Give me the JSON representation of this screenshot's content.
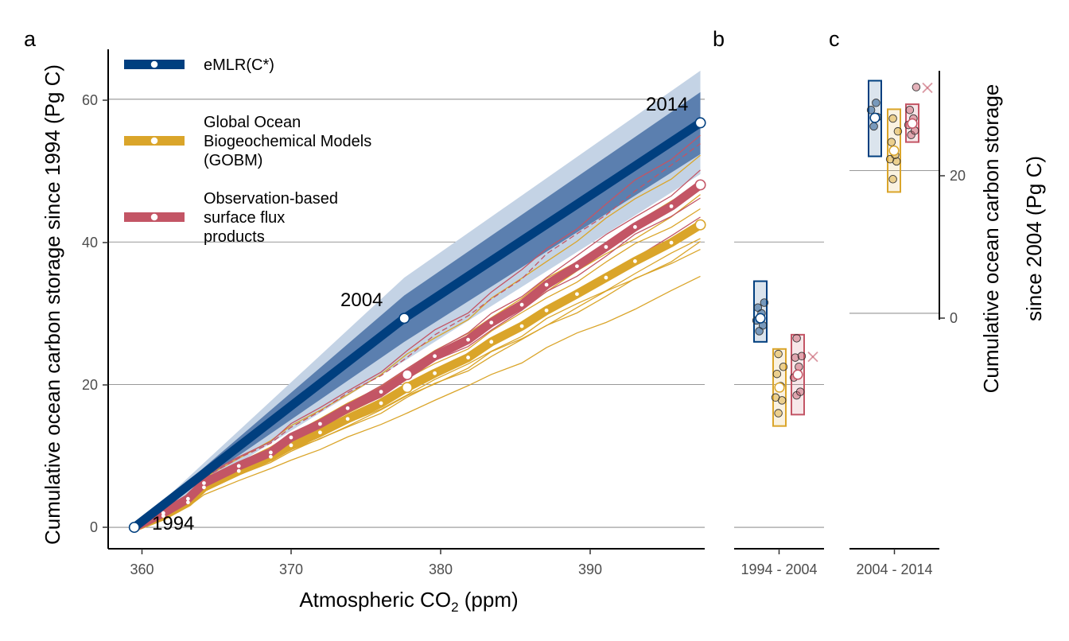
{
  "panel_labels": {
    "a": "a",
    "b": "b",
    "c": "c"
  },
  "colors": {
    "emlr": "#003f7f",
    "emlr_inner_band": "#5b7faf",
    "emlr_outer_band": "#c4d3e5",
    "gobm": "#daa52a",
    "obs": "#c35565",
    "grid": "#777777"
  },
  "legend": {
    "emlr": [
      "eMLR(C*)"
    ],
    "gobm": [
      "Global Ocean",
      "Biogeochemical Models",
      "(GOBM)"
    ],
    "obs": [
      "Observation-based",
      "surface flux",
      "products"
    ]
  },
  "panel_a": {
    "xlabel": "Atmospheric CO",
    "xlabel_sub": "2",
    "xlabel_unit": " (ppm)",
    "ylabel": "Cumulative ocean carbon storage since 1994 (Pg C)",
    "ticks": {
      "x": [
        "360",
        "370",
        "380",
        "390"
      ],
      "y": [
        "0",
        "20",
        "40",
        "60"
      ]
    },
    "annotations": {
      "y1994": "1994",
      "y2004": "2004",
      "y2014": "2014"
    }
  },
  "panel_b": {
    "xtick": "1994 - 2004"
  },
  "panel_c": {
    "xtick": "2004 - 2014",
    "ylabel_line1": "Cumulative ocean carbon storage",
    "ylabel_line2": "since 2004 (Pg C)",
    "ticks": {
      "y": [
        "0",
        "20"
      ]
    }
  },
  "chart_data": [
    {
      "type": "line",
      "xlabel": "Atmospheric CO2 (ppm)",
      "ylabel": "Cumulative ocean carbon storage since 1994 (Pg C)",
      "xlim": [
        356.5,
        397.6
      ],
      "ylim": [
        -3,
        67
      ],
      "grid": "horizontal",
      "legend_position": "top-left",
      "series": [
        {
          "name": "eMLR(C*)",
          "x": [
            358.3,
            376.9,
            397.3
          ],
          "y": [
            0,
            29.3,
            56.7
          ],
          "band_inner_upper": [
            0,
            32.5,
            61
          ],
          "band_inner_lower": [
            0,
            26,
            52.3
          ],
          "band_outer_upper": [
            0,
            35,
            64
          ],
          "band_outer_lower": [
            0,
            23.3,
            49.5
          ],
          "markers": {
            "1994": 0,
            "2004": 29.3,
            "2014": 56.7
          }
        },
        {
          "name": "Global Ocean Biogeochemical Models (GOBM)",
          "x": [
            358.3,
            360.3,
            362,
            363.1,
            365.5,
            367.7,
            369.1,
            371.1,
            373,
            375.3,
            377.1,
            379,
            381.3,
            382.9,
            385,
            386.7,
            388.8,
            390.8,
            392.8,
            395.3,
            397.3
          ],
          "y": [
            0,
            1.6,
            3.5,
            5.6,
            7.9,
            9.9,
            11.5,
            13.3,
            15.2,
            17.4,
            19.6,
            21.6,
            23.8,
            26,
            28.2,
            30.4,
            32.7,
            35,
            37.3,
            39.9,
            42.4
          ],
          "members_y_2014": [
            35,
            39.3,
            39.8,
            40.5,
            44.9,
            46.3,
            48.3,
            52.2
          ]
        },
        {
          "name": "Observation-based surface flux products",
          "x": [
            358.3,
            360.3,
            362,
            363.1,
            365.5,
            367.7,
            369.1,
            371.1,
            373,
            375.3,
            377.1,
            379,
            381.3,
            382.9,
            385,
            386.7,
            388.8,
            390.8,
            392.8,
            395.3,
            397.3
          ],
          "y": [
            0,
            2,
            4,
            6.2,
            8.6,
            10.5,
            12.6,
            14.5,
            16.7,
            19,
            21.4,
            24,
            26.3,
            28.7,
            31.2,
            34,
            36.6,
            39.3,
            42.1,
            45,
            48
          ],
          "members_y_2014": [
            43.3,
            46.5,
            49.8,
            53.8,
            55.2
          ]
        }
      ]
    },
    {
      "type": "scatter",
      "title": "b",
      "categories": [
        "1994 - 2004"
      ],
      "ylim": [
        -3,
        67
      ],
      "series": [
        {
          "name": "eMLR(C*)",
          "mean": 29.3,
          "box": [
            26,
            34.5
          ],
          "points": [
            27.5,
            28.3,
            29,
            30,
            30.8,
            31.5
          ]
        },
        {
          "name": "Global Ocean Biogeochemical Models (GOBM)",
          "mean": 19.6,
          "box": [
            14.2,
            25
          ],
          "points": [
            16,
            17.8,
            18.2,
            19.8,
            21.5,
            22.5,
            24.3
          ]
        },
        {
          "name": "Observation-based surface flux products",
          "mean": 21.4,
          "box": [
            15.8,
            27
          ],
          "points": [
            18.5,
            19,
            21,
            22.5,
            23.8,
            24,
            26.5
          ]
        }
      ],
      "outlier_cross": {
        "series": "Observation-based surface flux products",
        "y": 23.9
      }
    },
    {
      "type": "scatter",
      "title": "c",
      "categories": [
        "2004 - 2014"
      ],
      "ylabel": "Cumulative ocean carbon storage since 2004 (Pg C)",
      "ylim": [
        -33,
        37
      ],
      "series": [
        {
          "name": "eMLR(C*)",
          "mean": 27.4,
          "box": [
            22,
            32.6
          ],
          "points": [
            26.2,
            27.5,
            28.5,
            29.5
          ]
        },
        {
          "name": "Global Ocean Biogeochemical Models (GOBM)",
          "mean": 22.8,
          "box": [
            17,
            28.6
          ],
          "points": [
            18.8,
            21.3,
            21.6,
            22.2,
            24,
            25.5,
            27.3
          ]
        },
        {
          "name": "Observation-based surface flux products",
          "mean": 26.6,
          "box": [
            24,
            29.3
          ],
          "points": [
            25,
            25.6,
            26.4,
            27.3,
            28.5,
            31.7
          ]
        }
      ],
      "outlier_cross": {
        "series": "Observation-based surface flux products",
        "y": 31.6
      }
    }
  ]
}
